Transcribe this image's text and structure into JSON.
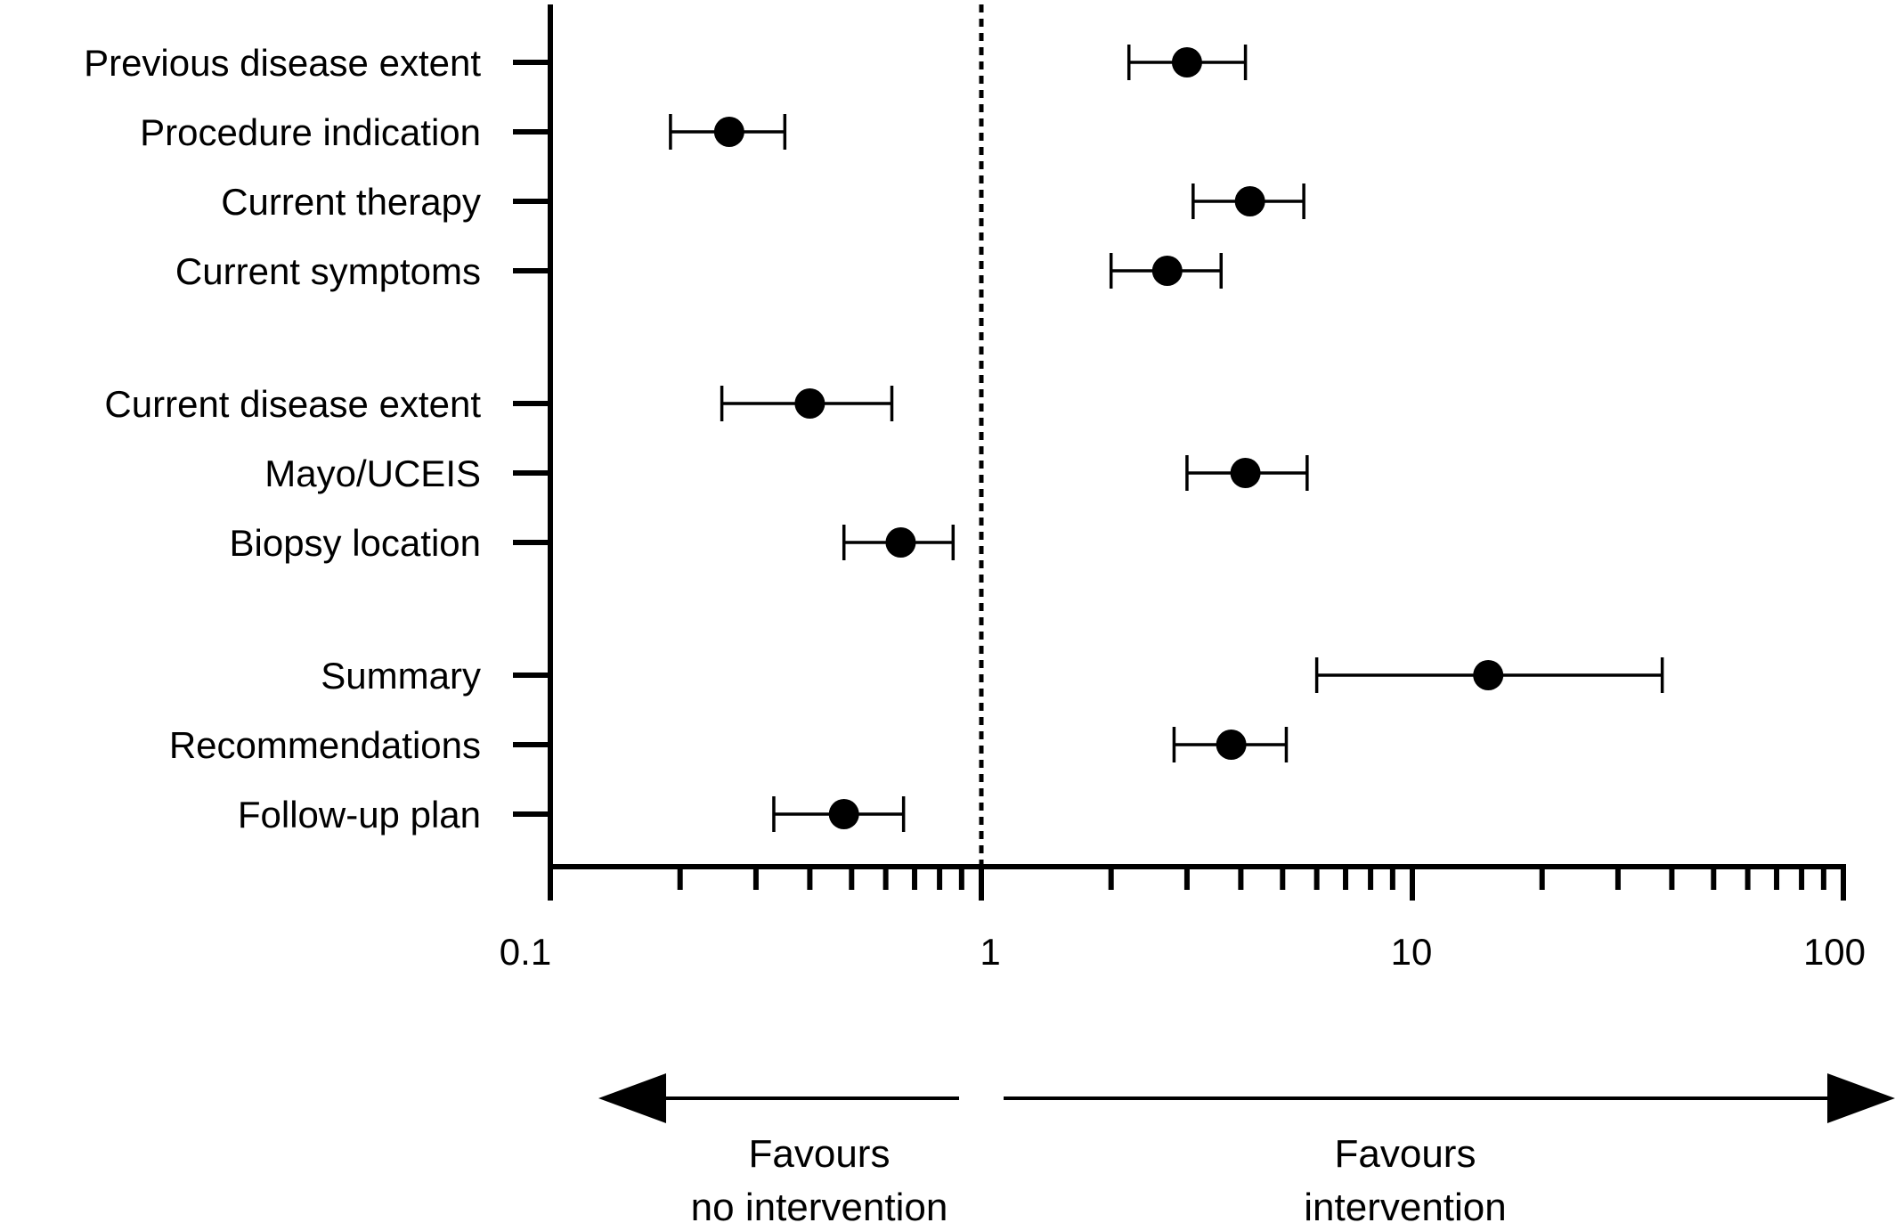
{
  "chart_data": {
    "type": "forest",
    "x_scale": "log",
    "xlim": [
      0.1,
      100
    ],
    "x_tick_labels": [
      "0.1",
      "1",
      "10",
      "100"
    ],
    "reference_line": 1,
    "grid": false,
    "rows": [
      {
        "label": "Previous disease extent",
        "estimate": 3.0,
        "ci_low": 2.2,
        "ci_high": 4.1
      },
      {
        "label": "Procedure indication",
        "estimate": 0.26,
        "ci_low": 0.19,
        "ci_high": 0.35
      },
      {
        "label": "Current therapy",
        "estimate": 4.2,
        "ci_low": 3.1,
        "ci_high": 5.6
      },
      {
        "label": "Current symptoms",
        "estimate": 2.7,
        "ci_low": 2.0,
        "ci_high": 3.6
      },
      {
        "label": "Current disease extent",
        "estimate": 0.4,
        "ci_low": 0.25,
        "ci_high": 0.62
      },
      {
        "label": "Mayo/UCEIS",
        "estimate": 4.1,
        "ci_low": 3.0,
        "ci_high": 5.7
      },
      {
        "label": "Biopsy location",
        "estimate": 0.65,
        "ci_low": 0.48,
        "ci_high": 0.86
      },
      {
        "label": "Summary",
        "estimate": 15,
        "ci_low": 6.0,
        "ci_high": 38
      },
      {
        "label": "Recommendations",
        "estimate": 3.8,
        "ci_low": 2.8,
        "ci_high": 5.1
      },
      {
        "label": "Follow-up plan",
        "estimate": 0.48,
        "ci_low": 0.33,
        "ci_high": 0.66
      }
    ],
    "annotations": {
      "left_line1": "Favours",
      "left_line2": "no intervention",
      "right_line1": "Favours",
      "right_line2": "intervention"
    }
  }
}
